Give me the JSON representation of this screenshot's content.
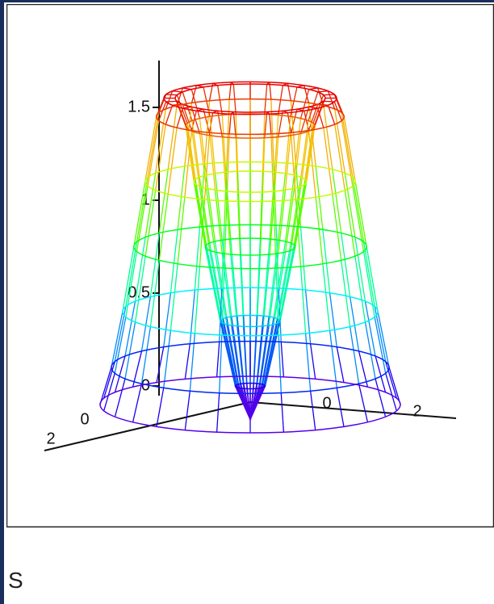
{
  "chart_data": {
    "type": "surface3d",
    "profile_r": [
      0,
      0.2,
      0.4,
      0.6,
      0.75,
      0.86,
      1.0,
      1.15,
      1.25,
      1.4,
      1.55,
      1.7,
      1.85,
      2.0
    ],
    "profile_z": [
      -0.18,
      0,
      0.35,
      0.75,
      1.1,
      1.4,
      1.55,
      1.55,
      1.45,
      1.1,
      0.75,
      0.4,
      0.1,
      -0.1
    ],
    "colormap": "rainbow",
    "zticks": [
      0,
      0.5,
      1,
      1.5
    ],
    "xticks": [
      0,
      2
    ],
    "yticks": [
      0,
      2
    ]
  },
  "caption": "S"
}
